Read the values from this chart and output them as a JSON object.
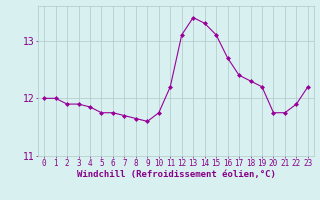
{
  "x": [
    0,
    1,
    2,
    3,
    4,
    5,
    6,
    7,
    8,
    9,
    10,
    11,
    12,
    13,
    14,
    15,
    16,
    17,
    18,
    19,
    20,
    21,
    22,
    23
  ],
  "y": [
    12.0,
    12.0,
    11.9,
    11.9,
    11.85,
    11.75,
    11.75,
    11.7,
    11.65,
    11.6,
    11.75,
    12.2,
    13.1,
    13.4,
    13.3,
    13.1,
    12.7,
    12.4,
    12.3,
    12.2,
    11.75,
    11.75,
    11.9,
    12.2
  ],
  "line_color": "#990099",
  "marker": "D",
  "marker_size": 2,
  "bg_color": "#d8f0f0",
  "grid_color": "#b0c8c8",
  "xlabel": "Windchill (Refroidissement éolien,°C)",
  "ylim": [
    11.0,
    13.6
  ],
  "yticks": [
    11,
    12,
    13
  ],
  "xticks": [
    0,
    1,
    2,
    3,
    4,
    5,
    6,
    7,
    8,
    9,
    10,
    11,
    12,
    13,
    14,
    15,
    16,
    17,
    18,
    19,
    20,
    21,
    22,
    23
  ],
  "xtick_labels": [
    "0",
    "1",
    "2",
    "3",
    "4",
    "5",
    "6",
    "7",
    "8",
    "9",
    "10",
    "11",
    "12",
    "13",
    "14",
    "15",
    "16",
    "17",
    "18",
    "19",
    "20",
    "21",
    "22",
    "23"
  ],
  "text_color": "#880088",
  "tick_fontsize": 5.5,
  "ytick_fontsize": 7.0,
  "xlabel_fontsize": 6.5,
  "linewidth": 0.8,
  "xlim_left": -0.5,
  "xlim_right": 23.5
}
